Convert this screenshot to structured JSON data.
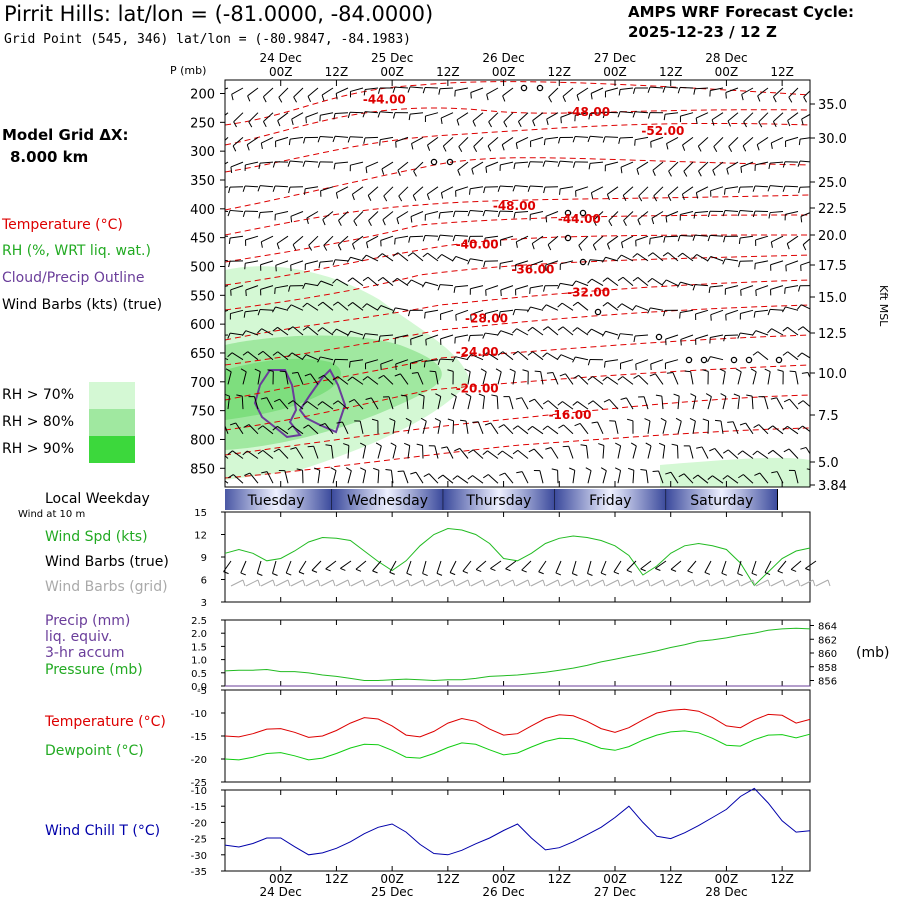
{
  "header": {
    "title": "Pirrit Hills:  lat/lon = (-81.0000, -84.0000)",
    "subtitle": "Grid Point (545, 346) lat/lon = (-80.9847, -84.1983)",
    "cycle_label": "AMPS WRF Forecast Cycle:",
    "cycle_value": "2025-12-23 / 12  Z"
  },
  "colors": {
    "temperature": "#dd0000",
    "rh": "#22bb22",
    "cloud": "#6a3d9a",
    "wind": "#000000",
    "grid_wind": "#aaaaaa",
    "windchill": "#0000aa",
    "dewpoint": "#11cc11",
    "day_band": "#3a4a9a"
  },
  "left_panel": {
    "model_grid_label": "Model Grid ΔX:",
    "model_grid_value": "8.000 km",
    "legend": {
      "temperature": "Temperature (°C)",
      "rh": "RH (%, WRT liq. wat.)",
      "cloud": "Cloud/Precip Outline",
      "wind": "Wind Barbs (kts) (true)"
    },
    "rh_scale": [
      {
        "label": "RH > 70%",
        "color": "#d4f8d4"
      },
      {
        "label": "RH > 80%",
        "color": "#a0e8a0"
      },
      {
        "label": "RH > 90%",
        "color": "#3cd83c"
      }
    ],
    "local_weekday": "Local Weekday",
    "wind_at_10m": "Wind at 10 m",
    "wind_spd_label": "Wind Spd (kts)",
    "wind_barbs_true": "Wind Barbs (true)",
    "wind_barbs_grid": "Wind Barbs (grid)",
    "precip_label_1": "Precip (mm)",
    "precip_label_2": "liq. equiv.",
    "precip_label_3": "3-hr accum",
    "pressure_label": "Pressure (mb)",
    "temp_label": "Temperature (°C)",
    "dewpoint_label": "Dewpoint (°C)",
    "windchill_label": "Wind Chill T (°C)"
  },
  "time_axis": {
    "ticks": [
      "00Z",
      "12Z",
      "00Z",
      "12Z",
      "00Z",
      "12Z",
      "00Z",
      "12Z",
      "00Z",
      "12Z"
    ],
    "dates": [
      "24 Dec",
      "25 Dec",
      "26 Dec",
      "27 Dec",
      "28 Dec"
    ],
    "weekdays": [
      "Tuesday",
      "Wednesday",
      "Thursday",
      "Friday",
      "Saturday"
    ]
  },
  "chart_data": [
    {
      "type": "heatmap",
      "name": "upper-air cross section",
      "ylabel": "P (mb)",
      "y2label": "Kft MSL",
      "pressure_ticks": [
        200,
        250,
        300,
        350,
        400,
        450,
        500,
        550,
        600,
        650,
        700,
        750,
        800,
        850
      ],
      "kft_ticks": [
        "35.0",
        "30.0",
        "25.0",
        "22.5",
        "20.0",
        "17.5",
        "15.0",
        "12.5",
        "10.0",
        "7.5",
        "5.0",
        "3.84"
      ],
      "temperature_contours": [
        {
          "label": "-44.00",
          "t_hour": 22,
          "p": 210
        },
        {
          "label": "-48.00",
          "t_hour": 66,
          "p": 232
        },
        {
          "label": "-52.00",
          "t_hour": 82,
          "p": 265
        },
        {
          "label": "-48.00",
          "t_hour": 50,
          "p": 395
        },
        {
          "label": "-44.00",
          "t_hour": 64,
          "p": 418
        },
        {
          "label": "-40.00",
          "t_hour": 42,
          "p": 462
        },
        {
          "label": "-36.00",
          "t_hour": 54,
          "p": 505
        },
        {
          "label": "-32.00",
          "t_hour": 66,
          "p": 545
        },
        {
          "label": "-28.00",
          "t_hour": 44,
          "p": 590
        },
        {
          "label": "-24.00",
          "t_hour": 42,
          "p": 648
        },
        {
          "label": "-20.00",
          "t_hour": 42,
          "p": 712
        },
        {
          "label": "-16.00",
          "t_hour": 62,
          "p": 758
        }
      ]
    },
    {
      "type": "line",
      "name": "wind speed",
      "ylabel": "Wind Spd (kts)",
      "yticks": [
        3,
        6,
        9,
        12,
        15
      ],
      "ylim": [
        3,
        15
      ],
      "x_hours_start": -12,
      "x_hours_step": 3,
      "values": [
        9.5,
        10,
        9.5,
        8.5,
        8.8,
        9.8,
        11,
        11.6,
        11.5,
        11.2,
        9.8,
        8.4,
        7.2,
        8.5,
        10.5,
        12,
        12.8,
        12.6,
        12,
        10.8,
        8.8,
        8.5,
        9.5,
        10.8,
        11.5,
        11.8,
        11.6,
        11.2,
        10.5,
        9.2,
        6.6,
        7.8,
        9.5,
        10.5,
        10.8,
        10.5,
        10,
        8.2,
        5.2,
        7,
        8.8,
        9.8,
        10.2
      ]
    },
    {
      "type": "line",
      "name": "precip and pressure",
      "ylabel": "Precip (mm)",
      "yticks": [
        "0.0",
        "0.5",
        "1.0",
        "1.5",
        "2.0",
        "2.5"
      ],
      "y2ticks": [
        "856",
        "858",
        "860",
        "862",
        "864"
      ],
      "ylim": [
        0,
        2.5
      ],
      "y2lim": [
        855.2,
        864.8
      ],
      "x_hours_start": -12,
      "x_hours_step": 3,
      "series": [
        {
          "name": "Pressure (mb)",
          "values": [
            857.4,
            857.5,
            857.5,
            857.6,
            857.3,
            857.3,
            857.1,
            856.8,
            856.6,
            856.3,
            856.0,
            856.0,
            856.1,
            856.2,
            856.1,
            856.0,
            856.1,
            856.1,
            856.3,
            856.6,
            856.7,
            856.8,
            857.0,
            857.2,
            857.5,
            857.8,
            858.2,
            858.7,
            859.1,
            859.5,
            859.9,
            860.3,
            860.8,
            861.2,
            861.7,
            861.9,
            862.2,
            862.6,
            862.9,
            863.3,
            863.5,
            863.6,
            863.5
          ]
        },
        {
          "name": "Precip (mm)",
          "values": [
            0,
            0,
            0,
            0,
            0,
            0,
            0,
            0,
            0,
            0,
            0,
            0,
            0,
            0,
            0,
            0,
            0,
            0,
            0,
            0,
            0,
            0,
            0,
            0,
            0,
            0,
            0,
            0,
            0,
            0,
            0,
            0,
            0,
            0,
            0,
            0,
            0,
            0,
            0,
            0,
            0,
            0,
            0
          ]
        }
      ]
    },
    {
      "type": "line",
      "name": "temperature and dewpoint",
      "yticks": [
        -25,
        -20,
        -15,
        -10,
        -5
      ],
      "ylim": [
        -25,
        -5
      ],
      "x_hours_start": -12,
      "x_hours_step": 3,
      "series": [
        {
          "name": "Temperature (°C)",
          "values": [
            -15,
            -15.2,
            -14.5,
            -13.5,
            -13.4,
            -14.2,
            -15.3,
            -15,
            -13.8,
            -12.2,
            -11,
            -11.3,
            -12.8,
            -14.8,
            -15.2,
            -14,
            -12.2,
            -11.2,
            -11.8,
            -13.5,
            -14.8,
            -14.5,
            -12.8,
            -11.2,
            -10.4,
            -10.6,
            -11.8,
            -13.4,
            -14.2,
            -13.2,
            -11.5,
            -10,
            -9.4,
            -9.2,
            -9.6,
            -11,
            -12.8,
            -13.2,
            -11.5,
            -10.3,
            -10.5,
            -12.2,
            -11.4
          ]
        },
        {
          "name": "Dewpoint (°C)",
          "values": [
            -20,
            -20.2,
            -19.6,
            -18.8,
            -18.6,
            -19.3,
            -20.2,
            -19.8,
            -18.8,
            -17.6,
            -16.8,
            -16.9,
            -18.1,
            -19.6,
            -19.8,
            -18.8,
            -17.5,
            -16.5,
            -16.8,
            -18,
            -19.1,
            -18.7,
            -17.4,
            -16.2,
            -15.5,
            -15.6,
            -16.5,
            -17.7,
            -18.1,
            -17.3,
            -15.9,
            -14.8,
            -14.1,
            -13.9,
            -14.3,
            -15.5,
            -17,
            -17.2,
            -15.8,
            -14.8,
            -14.7,
            -15.4,
            -14.6
          ]
        }
      ]
    },
    {
      "type": "line",
      "name": "wind chill",
      "yticks": [
        -35,
        -30,
        -25,
        -20,
        -15,
        -10
      ],
      "ylim": [
        -35,
        -10
      ],
      "x_hours_start": -12,
      "x_hours_step": 3,
      "series": [
        {
          "name": "Wind Chill T (°C)",
          "values": [
            -27,
            -27.6,
            -26.5,
            -24.8,
            -24.8,
            -27.5,
            -30,
            -29.4,
            -28,
            -26,
            -23.5,
            -21.5,
            -20.5,
            -23,
            -26.8,
            -29.6,
            -30,
            -28.6,
            -26.6,
            -24.8,
            -22.5,
            -20.5,
            -24.8,
            -28.5,
            -27.8,
            -26,
            -23.8,
            -21.5,
            -18.5,
            -15,
            -20,
            -24.3,
            -25,
            -23.2,
            -21,
            -18.5,
            -16,
            -12,
            -9.5,
            -14,
            -19.5,
            -23,
            -22.6
          ]
        }
      ]
    }
  ]
}
